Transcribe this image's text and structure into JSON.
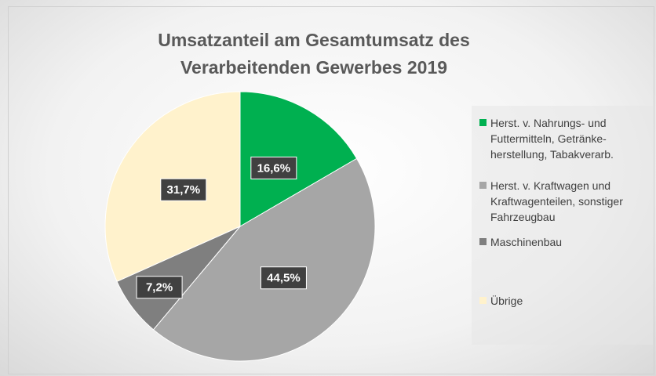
{
  "chart_data": {
    "type": "pie",
    "title": "Umsatzanteil am Gesamtumsatz des Verarbeitenden Gewerbes 2019",
    "categories": [
      "Herst. v. Nahrungs- und Futtermitteln, Getränke-herstellung, Tabakverarb.",
      "Herst. v. Kraftwagen und Kraftwagenteilen, sonstiger Fahrzeugbau",
      "Maschinenbau",
      "Übrige"
    ],
    "values": [
      16.6,
      44.5,
      7.2,
      31.7
    ],
    "value_labels": [
      "16,6%",
      "44,5%",
      "7,2%",
      "31,7%"
    ],
    "colors": [
      "#00b050",
      "#a6a6a6",
      "#7f7f7f",
      "#fff2cc"
    ],
    "legend": "right"
  }
}
